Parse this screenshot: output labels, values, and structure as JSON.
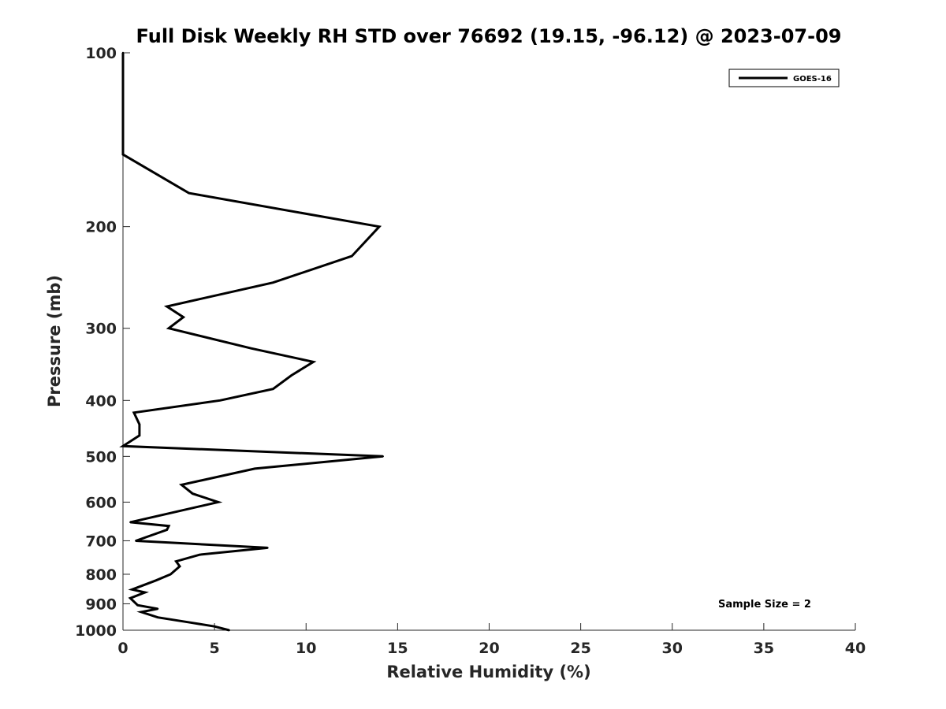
{
  "chart_data": {
    "type": "line",
    "title": "Full Disk Weekly RH STD over 76692 (19.15, -96.12) @ 2023-07-09",
    "xlabel": "Relative Humidity (%)",
    "ylabel": "Pressure (mb)",
    "xlim": [
      0,
      40
    ],
    "ylim": [
      1000,
      100
    ],
    "y_scale": "log",
    "y_reversed": true,
    "grid": false,
    "legend_position": "top-right",
    "x_ticks": [
      0,
      5,
      10,
      15,
      20,
      25,
      30,
      35,
      40
    ],
    "y_ticks": [
      100,
      200,
      300,
      400,
      500,
      600,
      700,
      800,
      900,
      1000
    ],
    "annotation": "Sample Size = 2",
    "series": [
      {
        "name": "GOES-16",
        "color": "#000000",
        "points": [
          [
            0.0,
            100
          ],
          [
            0.0,
            125
          ],
          [
            0.0,
            150
          ],
          [
            3.6,
            175
          ],
          [
            14.0,
            200
          ],
          [
            12.5,
            225
          ],
          [
            8.2,
            250
          ],
          [
            2.4,
            275
          ],
          [
            3.3,
            287
          ],
          [
            2.5,
            300
          ],
          [
            7.0,
            325
          ],
          [
            10.4,
            343
          ],
          [
            9.2,
            362
          ],
          [
            8.2,
            382
          ],
          [
            5.3,
            400
          ],
          [
            0.6,
            420
          ],
          [
            0.9,
            440
          ],
          [
            0.9,
            460
          ],
          [
            0.0,
            480
          ],
          [
            14.2,
            500
          ],
          [
            7.2,
            525
          ],
          [
            3.2,
            560
          ],
          [
            3.8,
            580
          ],
          [
            5.2,
            600
          ],
          [
            0.4,
            650
          ],
          [
            2.5,
            660
          ],
          [
            2.4,
            670
          ],
          [
            0.7,
            700
          ],
          [
            7.9,
            720
          ],
          [
            4.2,
            740
          ],
          [
            2.9,
            760
          ],
          [
            3.1,
            775
          ],
          [
            2.6,
            800
          ],
          [
            1.8,
            820
          ],
          [
            0.5,
            850
          ],
          [
            1.2,
            860
          ],
          [
            0.4,
            880
          ],
          [
            0.8,
            905
          ],
          [
            1.9,
            918
          ],
          [
            1.0,
            930
          ],
          [
            1.9,
            950
          ],
          [
            3.7,
            970
          ],
          [
            5.0,
            985
          ],
          [
            5.8,
            1000
          ]
        ]
      }
    ]
  }
}
